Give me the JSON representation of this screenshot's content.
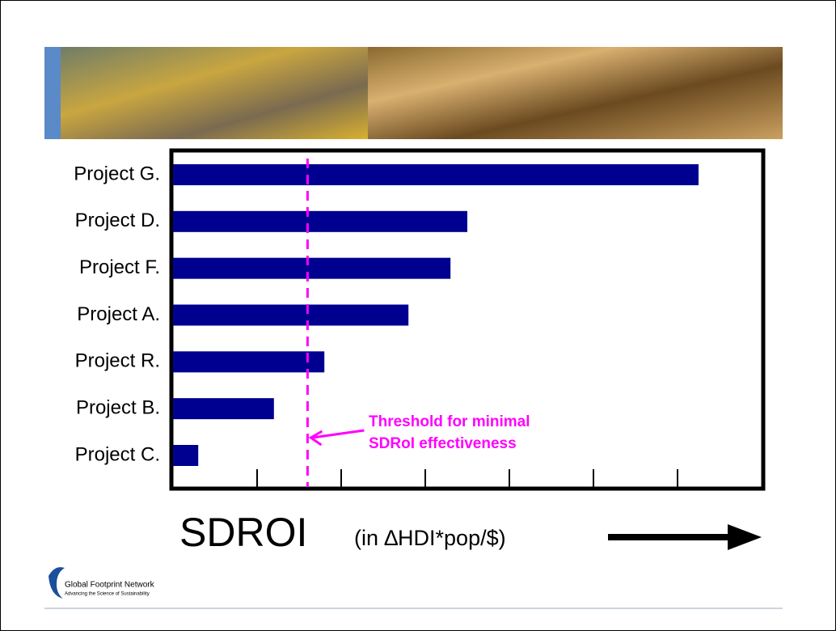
{
  "chart_data": {
    "type": "bar",
    "orientation": "horizontal",
    "categories": [
      "Project G.",
      "Project D.",
      "Project F.",
      "Project A.",
      "Project R.",
      "Project B.",
      "Project C."
    ],
    "values": [
      6.25,
      3.5,
      3.3,
      2.8,
      1.8,
      1.2,
      0.3
    ],
    "color": "#000090",
    "xlim": [
      0,
      7
    ],
    "xticks": [
      1,
      2,
      3,
      4,
      5,
      6
    ],
    "xlabel": "SDROI",
    "xlabel_unit": "(in ∆HDI*pop/$)",
    "threshold": {
      "value": 1.6,
      "color": "#ff00ff",
      "label": [
        "Threshold for minimal",
        "SDRoI effectiveness"
      ]
    }
  },
  "footer": {
    "logo_name": "Global Footprint Network",
    "logo_tagline": "Advancing the Science of Sustainability"
  }
}
